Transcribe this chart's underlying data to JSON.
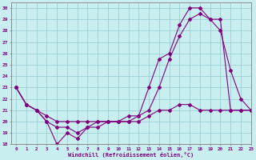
{
  "xlabel": "Windchill (Refroidissement éolien,°C)",
  "background_color": "#c8eef0",
  "line_color": "#800080",
  "grid_color": "#90c8d0",
  "xlim": [
    -0.5,
    23
  ],
  "ylim": [
    18,
    30.5
  ],
  "yticks": [
    18,
    19,
    20,
    21,
    22,
    23,
    24,
    25,
    26,
    27,
    28,
    29,
    30
  ],
  "xticks": [
    0,
    1,
    2,
    3,
    4,
    5,
    6,
    7,
    8,
    9,
    10,
    11,
    12,
    13,
    14,
    15,
    16,
    17,
    18,
    19,
    20,
    21,
    22,
    23
  ],
  "series1_x": [
    0,
    1,
    2,
    3,
    4,
    5,
    6,
    7,
    8,
    9,
    10,
    11,
    12,
    13,
    14,
    15,
    16,
    17,
    18,
    19,
    20,
    21,
    22,
    23
  ],
  "series1_y": [
    23,
    21.5,
    21,
    20,
    18,
    19,
    18.5,
    19.5,
    19.5,
    20,
    20,
    20.5,
    20.5,
    23,
    25.5,
    26,
    28.5,
    30,
    30,
    29,
    28,
    24.5,
    22,
    21
  ],
  "series2_x": [
    0,
    1,
    2,
    3,
    4,
    5,
    6,
    7,
    8,
    9,
    10,
    11,
    12,
    13,
    14,
    15,
    16,
    17,
    18,
    19,
    20,
    21,
    22,
    23
  ],
  "series2_y": [
    23,
    21.5,
    21,
    20,
    19.5,
    19.5,
    19,
    19.5,
    20,
    20,
    20,
    20,
    20.5,
    21,
    23,
    25.5,
    27.5,
    29,
    29.5,
    29,
    29,
    21,
    21,
    21
  ],
  "series3_x": [
    0,
    1,
    2,
    3,
    4,
    5,
    6,
    7,
    8,
    9,
    10,
    11,
    12,
    13,
    14,
    15,
    16,
    17,
    18,
    19,
    20,
    21,
    22,
    23
  ],
  "series3_y": [
    23,
    21.5,
    21,
    20.5,
    20,
    20,
    20,
    20,
    20,
    20,
    20,
    20,
    20,
    20.5,
    21,
    21,
    21.5,
    21.5,
    21,
    21,
    21,
    21,
    21,
    21
  ]
}
